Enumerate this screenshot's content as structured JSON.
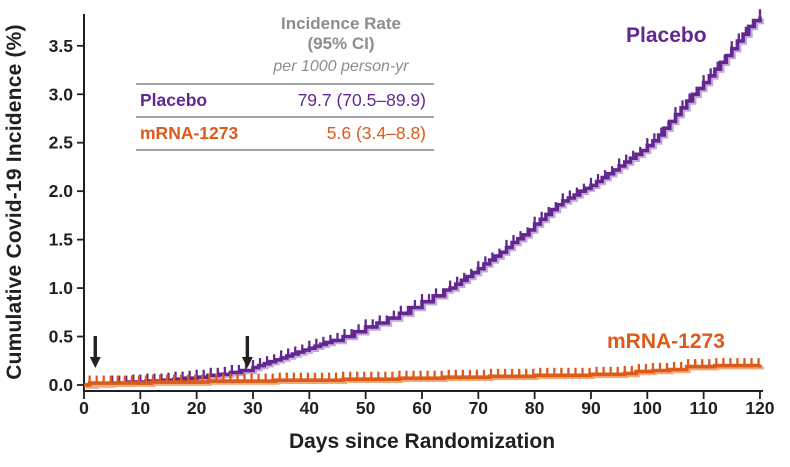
{
  "legend": {
    "header_line1": "Incidence Rate",
    "header_line2": "(95% CI)",
    "header_line3": "per 1000 person-yr"
  },
  "colors": {
    "axis": "#231f20",
    "arrow": "#231f20",
    "legend_header_gray": "#8d8d8d",
    "placebo_purple": "#632790",
    "mrna_orange": "#DC5A1A"
  },
  "chart_data": {
    "type": "line",
    "subtype": "kaplan-meier-cumulative-incidence-step",
    "title": "",
    "xlabel": "Days since Randomization",
    "ylabel": "Cumulative Covid-19 Incidence (%)",
    "xlim": [
      0,
      120
    ],
    "ylim": [
      0,
      3.85
    ],
    "grid": false,
    "x_ticks": [
      0,
      10,
      20,
      30,
      40,
      50,
      60,
      70,
      80,
      90,
      100,
      110,
      120
    ],
    "y_tick_labels": [
      "0.0",
      "0.5",
      "1.0",
      "1.5",
      "2.0",
      "2.5",
      "3.0",
      "3.5"
    ],
    "dose_arrow_days": [
      2,
      29
    ],
    "censor_tick_interval_days": 1.25,
    "series": [
      {
        "name": "Placebo",
        "incidence_rate_95ci": "79.7 (70.5–89.9)",
        "color": "#632790",
        "halo": "#C4A9DA",
        "censor_start_day": 5,
        "points": [
          [
            0,
            0
          ],
          [
            2,
            0.01
          ],
          [
            5,
            0.02
          ],
          [
            8,
            0.03
          ],
          [
            11,
            0.04
          ],
          [
            14,
            0.05
          ],
          [
            16,
            0.06
          ],
          [
            18,
            0.07
          ],
          [
            20,
            0.08
          ],
          [
            22,
            0.1
          ],
          [
            24,
            0.11
          ],
          [
            26,
            0.13
          ],
          [
            28,
            0.15
          ],
          [
            30,
            0.18
          ],
          [
            31,
            0.2
          ],
          [
            32,
            0.22
          ],
          [
            33,
            0.24
          ],
          [
            34,
            0.26
          ],
          [
            35,
            0.28
          ],
          [
            36,
            0.3
          ],
          [
            37,
            0.32
          ],
          [
            38,
            0.34
          ],
          [
            39,
            0.36
          ],
          [
            40,
            0.38
          ],
          [
            41,
            0.4
          ],
          [
            42,
            0.42
          ],
          [
            43,
            0.44
          ],
          [
            44,
            0.46
          ],
          [
            46,
            0.5
          ],
          [
            48,
            0.55
          ],
          [
            50,
            0.6
          ],
          [
            52,
            0.64
          ],
          [
            54,
            0.69
          ],
          [
            56,
            0.74
          ],
          [
            58,
            0.8
          ],
          [
            60,
            0.86
          ],
          [
            62,
            0.92
          ],
          [
            64,
            0.98
          ],
          [
            65,
            1.0
          ],
          [
            66,
            1.04
          ],
          [
            67,
            1.08
          ],
          [
            68,
            1.12
          ],
          [
            69,
            1.16
          ],
          [
            70,
            1.2
          ],
          [
            71,
            1.25
          ],
          [
            72,
            1.29
          ],
          [
            73,
            1.33
          ],
          [
            74,
            1.37
          ],
          [
            75,
            1.42
          ],
          [
            76,
            1.47
          ],
          [
            77,
            1.51
          ],
          [
            78,
            1.55
          ],
          [
            79,
            1.6
          ],
          [
            80,
            1.66
          ],
          [
            81,
            1.71
          ],
          [
            82,
            1.76
          ],
          [
            83,
            1.81
          ],
          [
            84,
            1.86
          ],
          [
            85,
            1.9
          ],
          [
            86,
            1.93
          ],
          [
            87,
            1.96
          ],
          [
            88,
            2.0
          ],
          [
            89,
            2.03
          ],
          [
            90,
            2.06
          ],
          [
            91,
            2.1
          ],
          [
            92,
            2.14
          ],
          [
            93,
            2.18
          ],
          [
            94,
            2.22
          ],
          [
            95,
            2.26
          ],
          [
            96,
            2.3
          ],
          [
            97,
            2.34
          ],
          [
            98,
            2.38
          ],
          [
            99,
            2.42
          ],
          [
            100,
            2.47
          ],
          [
            101,
            2.52
          ],
          [
            102,
            2.58
          ],
          [
            103,
            2.65
          ],
          [
            104,
            2.72
          ],
          [
            105,
            2.79
          ],
          [
            106,
            2.86
          ],
          [
            107,
            2.93
          ],
          [
            108,
            3.0
          ],
          [
            109,
            3.06
          ],
          [
            110,
            3.12
          ],
          [
            111,
            3.19
          ],
          [
            112,
            3.26
          ],
          [
            113,
            3.33
          ],
          [
            114,
            3.4
          ],
          [
            115,
            3.47
          ],
          [
            116,
            3.55
          ],
          [
            117,
            3.62
          ],
          [
            118,
            3.7
          ],
          [
            119,
            3.76
          ],
          [
            120,
            3.8
          ]
        ]
      },
      {
        "name": "mRNA-1273",
        "incidence_rate_95ci": "5.6 (3.4–8.8)",
        "color": "#DC5A1A",
        "halo": "#F0A979",
        "censor_start_day": 1,
        "points": [
          [
            0,
            0
          ],
          [
            1,
            0.02
          ],
          [
            12,
            0.03
          ],
          [
            22,
            0.04
          ],
          [
            34,
            0.05
          ],
          [
            46,
            0.06
          ],
          [
            56,
            0.07
          ],
          [
            64,
            0.08
          ],
          [
            72,
            0.09
          ],
          [
            80,
            0.1
          ],
          [
            90,
            0.11
          ],
          [
            96,
            0.12
          ],
          [
            98,
            0.14
          ],
          [
            101,
            0.15
          ],
          [
            104,
            0.16
          ],
          [
            107,
            0.19
          ],
          [
            112,
            0.2
          ],
          [
            120,
            0.21
          ]
        ]
      }
    ]
  }
}
